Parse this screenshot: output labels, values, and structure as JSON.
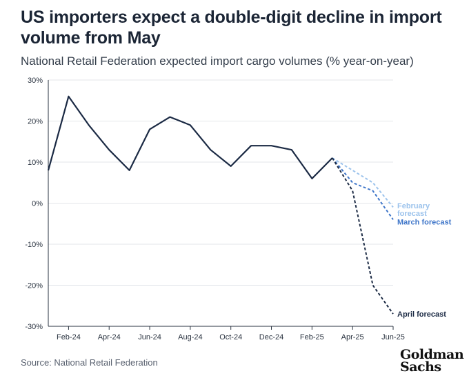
{
  "title": "US importers expect a double-digit decline in import volume from May",
  "subtitle": "National Retail Federation expected import cargo volumes (% year-on-year)",
  "source": "Source: National Retail Federation",
  "logo": {
    "line1": "Goldman",
    "line2": "Sachs"
  },
  "colors": {
    "actual": "#1b2a44",
    "february": "#9cc3ec",
    "march": "#3f76c9",
    "april": "#1b2a44"
  },
  "chart_data": {
    "type": "line",
    "ylim": [
      -30,
      30
    ],
    "y_ticks": [
      30,
      20,
      10,
      0,
      -10,
      -20,
      -30
    ],
    "y_tick_labels": [
      "30%",
      "20%",
      "10%",
      "0%",
      "-10%",
      "-20%",
      "-30%"
    ],
    "x_ticks": [
      "Feb-24",
      "Apr-24",
      "Jun-24",
      "Aug-24",
      "Oct-24",
      "Dec-24",
      "Feb-25",
      "Apr-25",
      "Jun-25"
    ],
    "x_labels": [
      "Jan-24",
      "Feb-24",
      "Mar-24",
      "Apr-24",
      "May-24",
      "Jun-24",
      "Jul-24",
      "Aug-24",
      "Sep-24",
      "Oct-24",
      "Nov-24",
      "Dec-24",
      "Jan-25",
      "Feb-25",
      "Mar-25",
      "Apr-25",
      "May-25",
      "Jun-25"
    ],
    "grid": "horizontal",
    "series": [
      {
        "key": "actual",
        "x": [
          "Jan-24",
          "Feb-24",
          "Mar-24",
          "Apr-24",
          "May-24",
          "Jun-24",
          "Jul-24",
          "Aug-24",
          "Sep-24",
          "Oct-24",
          "Nov-24",
          "Dec-24",
          "Jan-25",
          "Feb-25",
          "Mar-25"
        ],
        "values": [
          8,
          26,
          19,
          13,
          8,
          18,
          21,
          19,
          13,
          9,
          14,
          14,
          13,
          6,
          11
        ],
        "dashed": false
      },
      {
        "key": "february",
        "name": "February forecast",
        "x": [
          "Mar-25",
          "Apr-25",
          "May-25",
          "Jun-25"
        ],
        "values": [
          11,
          8,
          5,
          -1
        ],
        "dashed": true
      },
      {
        "key": "march",
        "name": "March forecast",
        "x": [
          "Mar-25",
          "Apr-25",
          "May-25",
          "Jun-25"
        ],
        "values": [
          11,
          5,
          3,
          -4
        ],
        "dashed": true
      },
      {
        "key": "april",
        "name": "April forecast",
        "x": [
          "Mar-25",
          "Apr-25",
          "May-25",
          "Jun-25"
        ],
        "values": [
          11,
          3,
          -20,
          -27
        ],
        "dashed": true
      }
    ],
    "annotations": [
      {
        "key": "february",
        "lines": [
          "February",
          "forecast"
        ]
      },
      {
        "key": "march",
        "lines": [
          "March forecast"
        ]
      },
      {
        "key": "april",
        "lines": [
          "April forecast"
        ]
      }
    ]
  }
}
